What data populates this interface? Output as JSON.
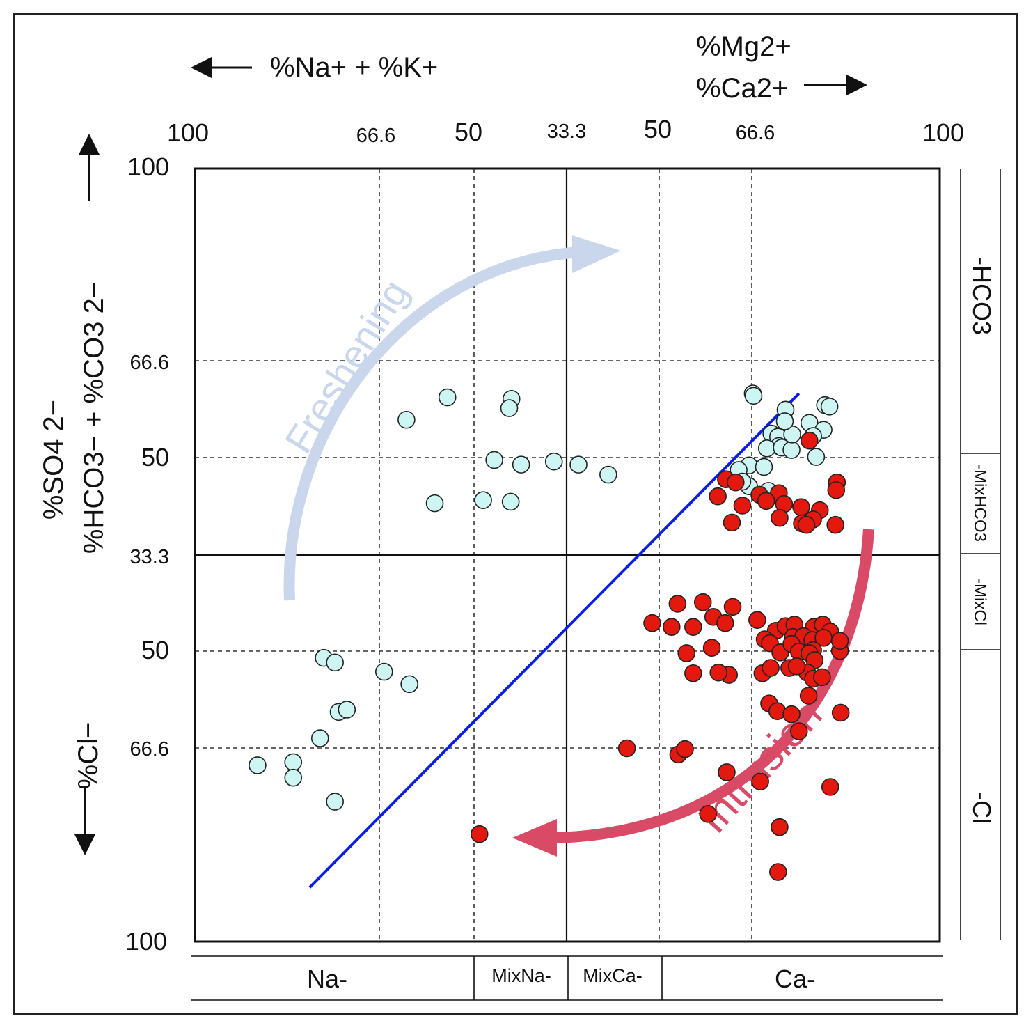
{
  "chart_data": {
    "type": "scatter",
    "title": "",
    "axes": {
      "x_cation_left": {
        "label": "%Na+ + %K+",
        "ticks": [
          "100",
          "66.6",
          "50",
          "33.3"
        ]
      },
      "x_cation_right": {
        "label_lines": [
          "%Mg2+",
          "%Ca2+"
        ],
        "ticks": [
          "50",
          "66.6",
          "100"
        ]
      },
      "y_top": {
        "label_lines": [
          "%SO4 2−",
          "%HCO3− + %CO3 2−"
        ],
        "ticks": [
          "100",
          "66.6",
          "50",
          "33.3"
        ]
      },
      "y_bottom": {
        "label": "%Cl−",
        "ticks": [
          "50",
          "66.6",
          "100"
        ]
      }
    },
    "xlim": [
      0,
      100
    ],
    "ylim": [
      0,
      100
    ],
    "note_units": "x = % of horizontal scale from left (Na-rich, 0) to right (Ca-rich, 100); y = % from top (HCO3-rich, 0) to bottom (Cl-rich, 100)",
    "zone_labels_bottom": [
      "Na-",
      "MixNa-",
      "MixCa-",
      "Ca-"
    ],
    "zone_labels_right": [
      "-HCO3",
      "-MixHCO3",
      "-MixCl",
      "-Cl"
    ],
    "annotations": [
      "Freshening",
      "Intrusion"
    ],
    "trend_line": {
      "x": [
        15.4,
        81.1
      ],
      "y": [
        93.0,
        29.1
      ],
      "color": "#0a1ee6"
    },
    "series": [
      {
        "color": "#cdf5f2",
        "points": [
          [
            33.9,
            29.6
          ],
          [
            28.4,
            32.5
          ],
          [
            42.5,
            29.8
          ],
          [
            42.2,
            31.0
          ],
          [
            32.2,
            43.3
          ],
          [
            40.2,
            37.7
          ],
          [
            43.8,
            38.3
          ],
          [
            38.7,
            42.9
          ],
          [
            42.4,
            43.1
          ],
          [
            48.2,
            37.9
          ],
          [
            51.5,
            38.3
          ],
          [
            55.5,
            39.6
          ],
          [
            74.9,
            29.1
          ],
          [
            75.0,
            29.4
          ],
          [
            79.3,
            31.2
          ],
          [
            84.6,
            30.6
          ],
          [
            85.2,
            30.8
          ],
          [
            77.4,
            34.3
          ],
          [
            78.3,
            34.7
          ],
          [
            78.4,
            35.9
          ],
          [
            76.8,
            36.2
          ],
          [
            78.8,
            36.1
          ],
          [
            80.1,
            36.4
          ],
          [
            74.4,
            38.4
          ],
          [
            76.4,
            38.6
          ],
          [
            80.2,
            34.4
          ],
          [
            82.5,
            32.9
          ],
          [
            84.4,
            33.8
          ],
          [
            79.2,
            32.7
          ],
          [
            83.4,
            37.3
          ],
          [
            83.0,
            34.6
          ],
          [
            73.0,
            39.0
          ],
          [
            74.4,
            41.1
          ],
          [
            73.5,
            40.5
          ],
          [
            77.0,
            41.7
          ],
          [
            17.3,
            63.3
          ],
          [
            18.8,
            63.9
          ],
          [
            25.4,
            65.1
          ],
          [
            28.8,
            66.7
          ],
          [
            19.3,
            70.3
          ],
          [
            20.4,
            70.0
          ],
          [
            16.8,
            73.7
          ],
          [
            13.2,
            76.8
          ],
          [
            13.2,
            78.8
          ],
          [
            8.4,
            77.2
          ],
          [
            18.8,
            81.9
          ]
        ]
      },
      {
        "color": "#e3180f",
        "points": [
          [
            82.5,
            35.2
          ],
          [
            71.3,
            40.2
          ],
          [
            72.6,
            40.6
          ],
          [
            86.2,
            40.6
          ],
          [
            86.1,
            41.6
          ],
          [
            70.2,
            42.4
          ],
          [
            75.8,
            42.2
          ],
          [
            78.4,
            42.0
          ],
          [
            73.5,
            43.6
          ],
          [
            76.7,
            43.0
          ],
          [
            79.1,
            43.4
          ],
          [
            81.4,
            43.8
          ],
          [
            83.9,
            44.2
          ],
          [
            72.1,
            45.8
          ],
          [
            78.5,
            45.2
          ],
          [
            81.5,
            45.9
          ],
          [
            83.0,
            45.4
          ],
          [
            82.1,
            46.1
          ],
          [
            86.0,
            46.1
          ],
          [
            64.8,
            56.3
          ],
          [
            68.2,
            56.1
          ],
          [
            72.2,
            56.7
          ],
          [
            69.6,
            58.0
          ],
          [
            71.2,
            58.8
          ],
          [
            61.4,
            58.8
          ],
          [
            64.0,
            59.3
          ],
          [
            66.9,
            59.3
          ],
          [
            75.5,
            58.4
          ],
          [
            78.0,
            59.8
          ],
          [
            79.3,
            59.2
          ],
          [
            83.1,
            59.3
          ],
          [
            80.5,
            59.0
          ],
          [
            84.3,
            59.0
          ],
          [
            85.3,
            59.9
          ],
          [
            76.5,
            60.9
          ],
          [
            80.3,
            60.6
          ],
          [
            81.7,
            60.5
          ],
          [
            82.9,
            61.0
          ],
          [
            86.6,
            62.4
          ],
          [
            84.4,
            60.7
          ],
          [
            77.2,
            61.4
          ],
          [
            78.6,
            62.6
          ],
          [
            80.1,
            61.5
          ],
          [
            83.0,
            62.3
          ],
          [
            81.1,
            62.5
          ],
          [
            82.5,
            62.7
          ],
          [
            83.2,
            63.6
          ],
          [
            86.6,
            61.1
          ],
          [
            66.0,
            62.7
          ],
          [
            69.4,
            62.0
          ],
          [
            66.9,
            65.3
          ],
          [
            71.7,
            65.5
          ],
          [
            70.3,
            65.2
          ],
          [
            76.2,
            65.3
          ],
          [
            77.3,
            64.6
          ],
          [
            79.8,
            64.6
          ],
          [
            82.2,
            65.2
          ],
          [
            83.0,
            66.0
          ],
          [
            80.8,
            64.4
          ],
          [
            84.2,
            65.8
          ],
          [
            77.1,
            69.2
          ],
          [
            78.2,
            70.2
          ],
          [
            80.1,
            70.6
          ],
          [
            82.4,
            68.2
          ],
          [
            81.1,
            72.8
          ],
          [
            86.7,
            70.4
          ],
          [
            58.0,
            75.0
          ],
          [
            64.9,
            75.8
          ],
          [
            65.8,
            75.1
          ],
          [
            71.4,
            78.1
          ],
          [
            75.9,
            79.3
          ],
          [
            68.9,
            83.5
          ],
          [
            78.5,
            85.2
          ],
          [
            38.2,
            86.1
          ],
          [
            78.3,
            91.0
          ],
          [
            85.3,
            80.0
          ]
        ]
      }
    ]
  }
}
